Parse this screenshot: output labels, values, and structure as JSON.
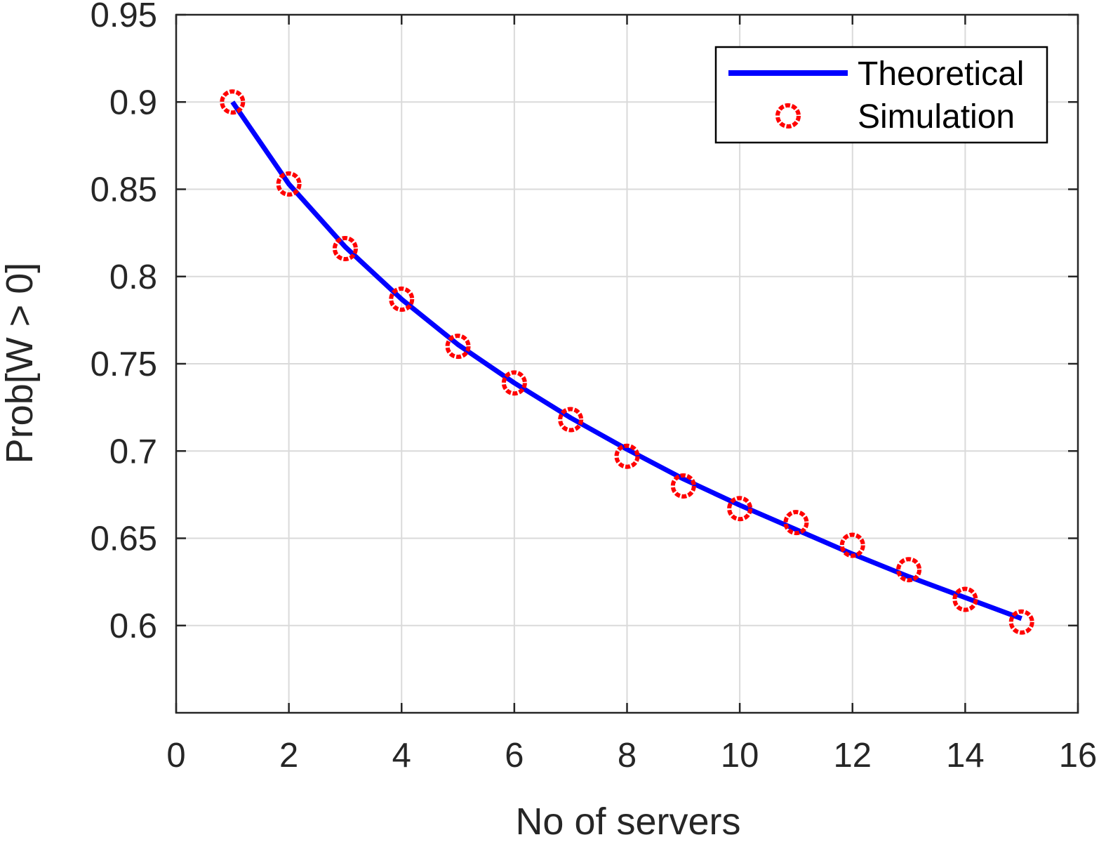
{
  "chart_data": {
    "type": "line",
    "title": "",
    "xlabel": "No of servers",
    "ylabel": "Prob[W > 0]",
    "xlim": [
      0,
      16
    ],
    "ylim": [
      0.55,
      0.95
    ],
    "xticks": [
      0,
      2,
      4,
      6,
      8,
      10,
      12,
      14,
      16
    ],
    "xtick_labels": [
      "0",
      "2",
      "4",
      "6",
      "8",
      "10",
      "12",
      "14",
      "16"
    ],
    "yticks": [
      0.6,
      0.65,
      0.7,
      0.75,
      0.8,
      0.85,
      0.9,
      0.95
    ],
    "ytick_labels": [
      "0.6",
      "0.65",
      "0.7",
      "0.75",
      "0.8",
      "0.85",
      "0.9",
      "0.95"
    ],
    "grid": true,
    "legend_position": "top-right",
    "series": [
      {
        "name": "Theoretical",
        "style": "line",
        "color": "#0000ff",
        "x": [
          1,
          2,
          3,
          4,
          5,
          6,
          7,
          8,
          9,
          10,
          11,
          12,
          13,
          14,
          15
        ],
        "y": [
          0.9,
          0.853,
          0.817,
          0.787,
          0.761,
          0.739,
          0.719,
          0.701,
          0.684,
          0.669,
          0.655,
          0.641,
          0.628,
          0.616,
          0.604
        ]
      },
      {
        "name": "Simulation",
        "style": "markers",
        "marker": "circle",
        "color": "#ff0000",
        "x": [
          1,
          2,
          3,
          4,
          5,
          6,
          7,
          8,
          9,
          10,
          11,
          12,
          13,
          14,
          15
        ],
        "y": [
          0.9,
          0.853,
          0.816,
          0.787,
          0.76,
          0.739,
          0.718,
          0.697,
          0.68,
          0.667,
          0.659,
          0.646,
          0.632,
          0.615,
          0.602
        ]
      }
    ]
  }
}
